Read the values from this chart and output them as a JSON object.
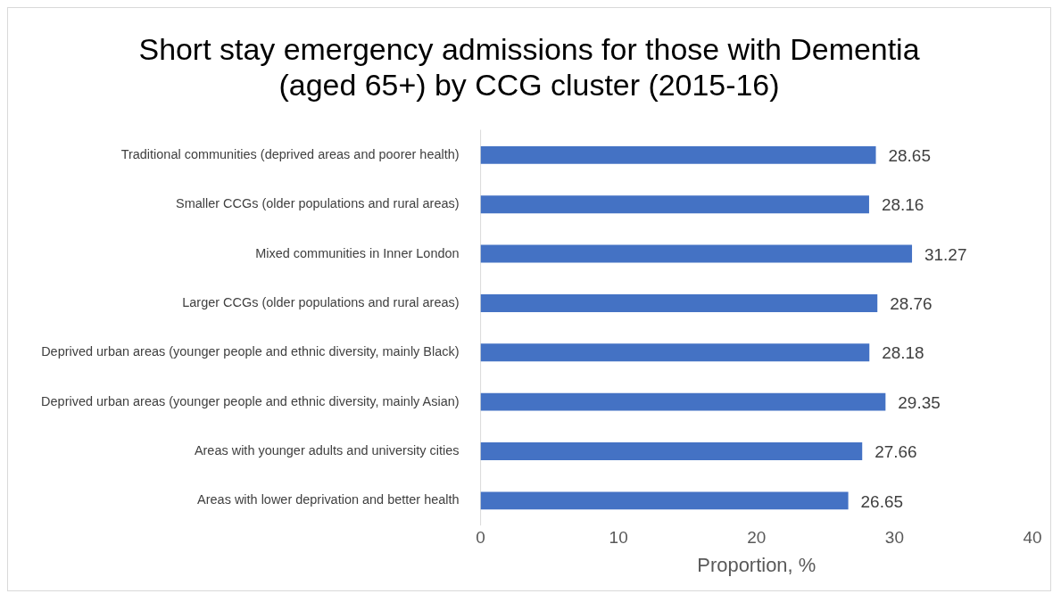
{
  "chart_data": {
    "type": "bar",
    "orientation": "horizontal",
    "title": "Short stay emergency admissions for those with Dementia\n(aged 65+) by CCG cluster (2015-16)",
    "xlabel": "Proportion, %",
    "categories": [
      "Traditional communities (deprived areas and poorer health)",
      "Smaller CCGs (older populations and rural areas)",
      "Mixed communities in Inner London",
      "Larger CCGs (older populations and rural areas)",
      "Deprived urban areas (younger people and ethnic diversity, mainly Black)",
      "Deprived urban areas (younger people and ethnic diversity, mainly Asian)",
      "Areas with younger adults and university cities",
      "Areas with lower deprivation and better health"
    ],
    "values": [
      28.65,
      28.16,
      31.27,
      28.76,
      28.18,
      29.35,
      27.66,
      26.65
    ],
    "color": "#4472c4",
    "xlim": [
      0,
      40
    ],
    "xticks": [
      0,
      10,
      20,
      30,
      40
    ],
    "data_labels": true,
    "legend": false
  }
}
